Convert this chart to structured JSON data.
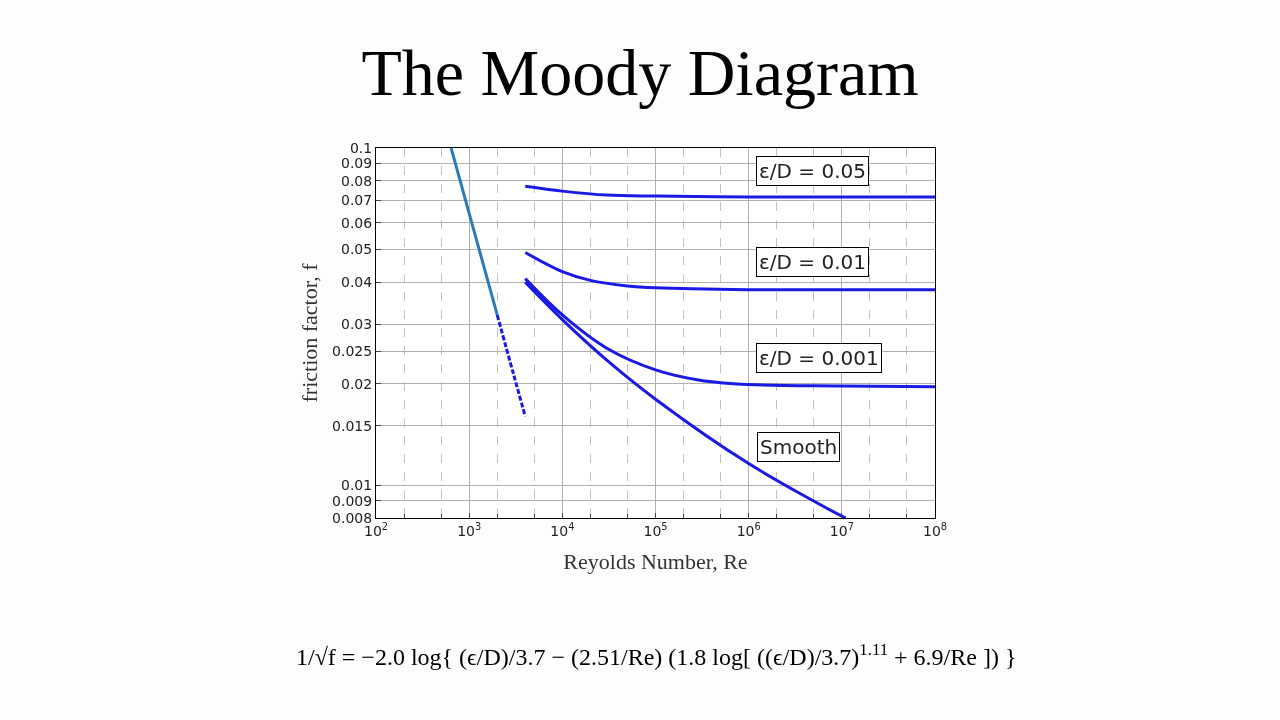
{
  "chart_data": {
    "type": "line",
    "title": "The Moody Diagram",
    "xlabel": "Reyolds Number, Re",
    "ylabel": "friction factor, f",
    "log": "xy",
    "grid": true,
    "xlim": [
      100,
      100000000
    ],
    "ylim": [
      0.008,
      0.1
    ],
    "xticks": [
      {
        "value": 100,
        "label": "10$^{2}$"
      },
      {
        "value": 1000,
        "label": "10$^{3}$"
      },
      {
        "value": 10000,
        "label": "10$^{4}$"
      },
      {
        "value": 100000,
        "label": "10$^{5}$"
      },
      {
        "value": 1000000,
        "label": "10$^{6}$"
      },
      {
        "value": 10000000,
        "label": "10$^{7}$"
      },
      {
        "value": 100000000,
        "label": "10$^{8}$"
      }
    ],
    "yticks": [
      0.008,
      0.009,
      0.01,
      0.015,
      0.02,
      0.025,
      0.03,
      0.04,
      0.05,
      0.06,
      0.07,
      0.08,
      0.09,
      0.1
    ],
    "series": [
      {
        "color": "#2b7bba",
        "line_style": "solid",
        "x": [
          640,
          1000,
          1500,
          2000
        ],
        "values": [
          0.1,
          0.064,
          0.0427,
          0.032
        ]
      },
      {
        "color": "#1a1ae6",
        "line_style": "dashed",
        "x": [
          2000,
          3000,
          4000
        ],
        "values": [
          0.032,
          0.0213,
          0.016
        ]
      },
      {
        "color": "#1a1ae6",
        "line_style": "solid",
        "x": [
          4000,
          10000,
          30000,
          100000,
          1000000,
          10000000,
          100000000
        ],
        "values": [
          0.077,
          0.0745,
          0.0725,
          0.072,
          0.0716,
          0.0716,
          0.0716
        ]
      },
      {
        "color": "#1a1ae6",
        "line_style": "solid",
        "x": [
          4000,
          10000,
          20000,
          50000,
          100000,
          1000000,
          10000000,
          100000000
        ],
        "values": [
          0.049,
          0.043,
          0.0405,
          0.039,
          0.0385,
          0.038,
          0.038,
          0.038
        ]
      },
      {
        "color": "#1a1ae6",
        "line_style": "solid",
        "x": [
          4000,
          10000,
          30000,
          100000,
          300000,
          1000000,
          10000000,
          100000000
        ],
        "values": [
          0.041,
          0.032,
          0.0255,
          0.022,
          0.0205,
          0.0199,
          0.0197,
          0.0196
        ]
      },
      {
        "color": "#1a1ae6",
        "line_style": "solid",
        "x": [
          4000,
          10000,
          30000,
          100000,
          1000000,
          10000000,
          11000000
        ],
        "values": [
          0.04,
          0.031,
          0.0235,
          0.018,
          0.0116,
          0.0081,
          0.008
        ]
      }
    ],
    "annotations": [
      "ε/D = 0.05",
      "ε/D = 0.01",
      "ε/D = 0.001",
      "Smooth",
      "1/√f = −2.0 log{ (ϵ/D)/3.7 − (2.51/Re) (1.8 log[ ((ϵ/D)/3.7)$^{1.11}$ + 6.9/Re ]) }"
    ]
  }
}
